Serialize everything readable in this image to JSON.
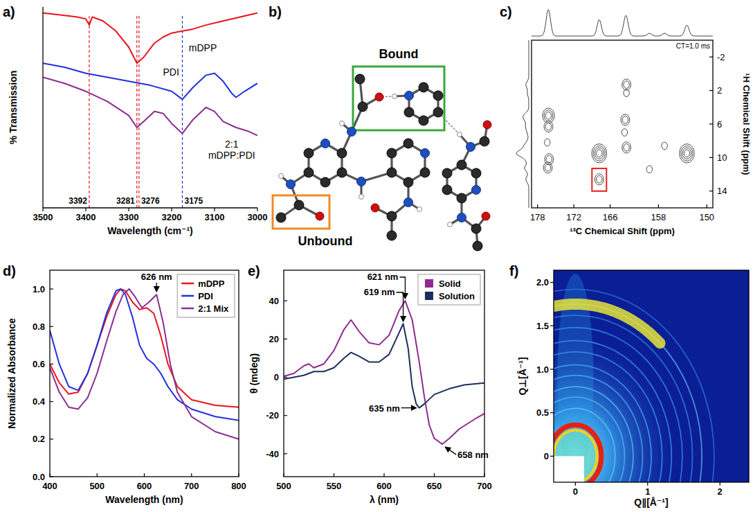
{
  "chart_data": [
    {
      "title": "a)",
      "type": "line",
      "x_label": "Wavelength (cm⁻¹)",
      "y_label": "% Transmission",
      "xlim": [
        3500,
        3000
      ],
      "xticks": [
        3500,
        3400,
        3300,
        3200,
        3100,
        3000
      ],
      "ylim": [
        0,
        100
      ],
      "tick_labels": "x",
      "series": [
        {
          "name": "mDPP",
          "color": "#e8141c",
          "x": [
            3500,
            3460,
            3420,
            3400,
            3392,
            3385,
            3360,
            3330,
            3300,
            3281,
            3265,
            3240,
            3220,
            3200,
            3150,
            3120,
            3080,
            3040,
            3000
          ],
          "values": [
            97,
            96,
            95,
            94,
            91,
            95,
            93,
            88,
            80,
            72,
            75,
            82,
            85,
            87,
            89,
            91,
            93,
            95,
            97
          ]
        },
        {
          "name": "PDI",
          "color": "#2030e0",
          "x": [
            3500,
            3450,
            3400,
            3350,
            3300,
            3250,
            3200,
            3175,
            3150,
            3120,
            3100,
            3080,
            3060,
            3050,
            3030,
            3000
          ],
          "values": [
            72,
            70,
            67,
            65,
            63,
            61,
            58,
            54,
            60,
            66,
            67,
            63,
            57,
            55,
            58,
            62
          ]
        },
        {
          "name": "2:1 mDPP:PDI",
          "color": "#8b2d8f",
          "x": [
            3500,
            3450,
            3400,
            3350,
            3300,
            3281,
            3265,
            3240,
            3220,
            3200,
            3175,
            3150,
            3120,
            3100,
            3080,
            3050,
            3020,
            3000
          ],
          "values": [
            65,
            62,
            58,
            53,
            46,
            40,
            43,
            48,
            47,
            42,
            37,
            44,
            50,
            48,
            43,
            40,
            38,
            36
          ]
        }
      ],
      "annotations": [
        {
          "x": 3392,
          "text": "3392",
          "color": "#e8141c"
        },
        {
          "x": 3281,
          "text": "3281",
          "color": "#e8141c"
        },
        {
          "x": 3276,
          "text": "3276",
          "color": "#e8141c"
        },
        {
          "x": 3175,
          "text": "3175",
          "color": "#2030e0"
        }
      ]
    },
    {
      "title": "c)",
      "type": "contour",
      "x_label": "¹³C Chemical Shift (ppm)",
      "y_label": "¹H Chemical Shift (ppm)",
      "xlim": [
        179,
        149
      ],
      "xticks": [
        178,
        172,
        166,
        158,
        150
      ],
      "ylim": [
        16,
        -4
      ],
      "yticks": [
        -2,
        2,
        6,
        10,
        14
      ],
      "x": [
        176.2,
        176.2,
        176.4,
        176.1,
        176.3,
        167.8,
        167.8,
        163.3,
        163.3,
        163.5,
        163.6,
        163.3,
        159.5,
        153.3,
        157
      ],
      "values": [
        5.0,
        6.3,
        8.2,
        10.2,
        11.2,
        9.5,
        12.6,
        1.3,
        2.3,
        5.5,
        7.0,
        8.8,
        11.4,
        9.5,
        8.6
      ],
      "size": [
        3,
        2,
        1,
        2,
        2,
        4,
        2,
        2,
        1,
        2,
        1,
        2,
        1,
        4,
        1
      ],
      "highlight": {
        "x": [
          169,
          166.6
        ],
        "y": [
          11.3,
          14
        ],
        "color": "#e0201b"
      },
      "annotations": [
        {
          "text": "CT=1.0 ms"
        }
      ]
    },
    {
      "title": "d)",
      "type": "line",
      "x_label": "Wavelength (nm)",
      "y_label": "Normalized Absorbance",
      "xlim": [
        400,
        800
      ],
      "xticks": [
        400,
        500,
        600,
        700,
        800
      ],
      "ylim": [
        0,
        1.1
      ],
      "yticks": [
        {
          "value": 0,
          "label": "0.0"
        },
        {
          "value": 0.2,
          "label": "0.2"
        },
        {
          "value": 0.4,
          "label": "0.4"
        },
        {
          "value": 0.6,
          "label": "0.6"
        },
        {
          "value": 0.8,
          "label": "0.8"
        },
        {
          "value": 1,
          "label": "1.0"
        }
      ],
      "legend": "top right",
      "series": [
        {
          "name": "mDPP",
          "color": "#e8141c",
          "x": [
            400,
            420,
            440,
            460,
            480,
            500,
            520,
            540,
            550,
            560,
            575,
            590,
            605,
            620,
            635,
            650,
            670,
            700,
            750,
            800
          ],
          "values": [
            0.6,
            0.5,
            0.44,
            0.45,
            0.55,
            0.7,
            0.85,
            0.97,
            1.0,
            0.99,
            0.93,
            0.89,
            0.9,
            0.87,
            0.75,
            0.6,
            0.48,
            0.41,
            0.38,
            0.37
          ]
        },
        {
          "name": "PDI",
          "color": "#2030e0",
          "x": [
            400,
            420,
            440,
            460,
            480,
            500,
            520,
            540,
            550,
            560,
            575,
            590,
            605,
            620,
            635,
            650,
            670,
            700,
            750,
            800
          ],
          "values": [
            0.78,
            0.6,
            0.48,
            0.46,
            0.55,
            0.7,
            0.87,
            0.99,
            1.0,
            0.97,
            0.85,
            0.7,
            0.63,
            0.6,
            0.55,
            0.48,
            0.41,
            0.36,
            0.32,
            0.3
          ]
        },
        {
          "name": "2:1 Mix",
          "color": "#8b2d8f",
          "x": [
            400,
            420,
            440,
            460,
            480,
            500,
            520,
            540,
            555,
            568,
            580,
            595,
            610,
            626,
            640,
            655,
            670,
            700,
            750,
            800
          ],
          "values": [
            0.58,
            0.45,
            0.37,
            0.36,
            0.42,
            0.55,
            0.72,
            0.88,
            0.97,
            1.0,
            0.96,
            0.9,
            0.93,
            0.97,
            0.82,
            0.6,
            0.45,
            0.32,
            0.24,
            0.2
          ]
        }
      ],
      "annotations": [
        {
          "text": "626 nm",
          "x": 626,
          "y": 0.97
        }
      ]
    },
    {
      "title": "e)",
      "type": "line",
      "x_label": "λ (nm)",
      "y_label": "θ (mdeg)",
      "xlim": [
        500,
        700
      ],
      "xticks": [
        500,
        550,
        600,
        650,
        700
      ],
      "ylim": [
        -52,
        56
      ],
      "yticks": [
        -40,
        -20,
        0,
        20,
        40
      ],
      "legend": "top right",
      "series": [
        {
          "name": "Solid",
          "color": "#8e2a90",
          "x": [
            500,
            510,
            520,
            525,
            530,
            540,
            550,
            560,
            567,
            575,
            585,
            595,
            605,
            615,
            621,
            628,
            635,
            640,
            645,
            650,
            658,
            665,
            675,
            690,
            700
          ],
          "values": [
            0.5,
            2,
            6,
            7,
            5,
            7,
            14,
            25,
            30,
            24,
            18,
            17,
            22,
            35,
            40,
            30,
            8,
            -10,
            -25,
            -32,
            -35,
            -32,
            -27,
            -22,
            -19
          ]
        },
        {
          "name": "Solution",
          "color": "#1c2e5c",
          "x": [
            500,
            510,
            520,
            530,
            540,
            550,
            560,
            567,
            575,
            585,
            595,
            605,
            612,
            619,
            624,
            628,
            632,
            635,
            640,
            650,
            665,
            680,
            700
          ],
          "values": [
            -1,
            0,
            1,
            3,
            3,
            5,
            10,
            13,
            11,
            8,
            8,
            12,
            20,
            28,
            15,
            -5,
            -14,
            -16,
            -14,
            -9,
            -6,
            -4,
            -3
          ]
        }
      ],
      "annotations": [
        {
          "text": "621 nm",
          "x": 621,
          "y": 40
        },
        {
          "text": "619 nm",
          "x": 619,
          "y": 28
        },
        {
          "text": "635 nm",
          "x": 635,
          "y": -16
        },
        {
          "text": "658 nm",
          "x": 658,
          "y": -35
        }
      ]
    },
    {
      "title": "f)",
      "type": "image",
      "x_label": "Q∥[Å⁻¹]",
      "y_label": "Q⊥[Å⁻¹]",
      "xlim": [
        -0.3,
        2.4
      ],
      "xticks": [
        0,
        1,
        2
      ],
      "ylim": [
        -0.3,
        2.14
      ],
      "yticks": [
        0,
        0.5,
        {
          "value": 1,
          "label": "1.0"
        },
        1.5,
        {
          "value": 2,
          "label": "2.0"
        }
      ],
      "q": [
        0.3,
        0.36,
        0.55,
        0.68,
        0.8,
        0.93,
        1.05,
        1.2,
        1.33,
        1.48,
        1.62,
        1.75,
        1.92
      ],
      "colors": [
        "#f2d21e",
        "#e8200c",
        "#5cc8f5",
        "#4fb8f0",
        "#56c0f2",
        "#48aaee",
        "#4aa8ee",
        "#3f9ae8",
        "#3d94e6",
        "#3a8ce2",
        "#3684de",
        "#5fb6f0",
        "#2f74d6"
      ],
      "arc": {
        "q": 1.75,
        "angles": [
          48,
          105
        ],
        "color": "#e6e43a"
      },
      "mask": {
        "x": [
          -0.3,
          0.12
        ],
        "y": [
          -0.3,
          0
        ]
      }
    }
  ],
  "structure": {
    "title": "b)",
    "bound": "Bound",
    "unbound": "Unbound"
  }
}
